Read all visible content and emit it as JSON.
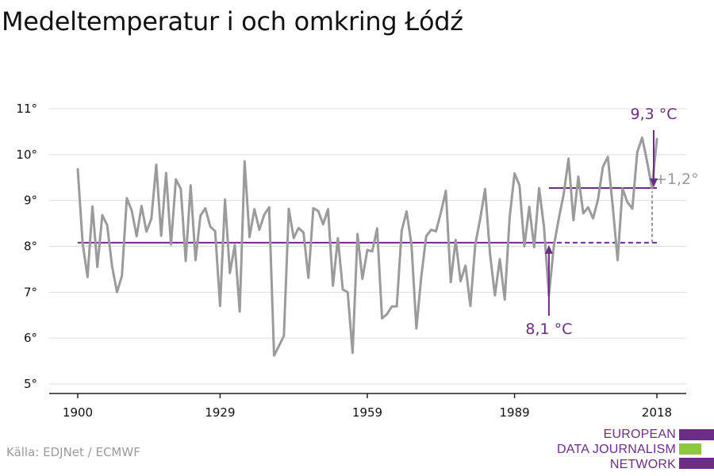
{
  "header": {
    "title": "Medeltemperatur i och omkring Łódź"
  },
  "footer": {
    "source": "Källa: EDJNet / ECMWF"
  },
  "logo": {
    "lines": [
      "EUROPEAN",
      "DATA JOURNALISM",
      "NETWORK"
    ],
    "colors": {
      "text": "#6b2d87",
      "bar_purple": "#6b2d87",
      "bar_green": "#8dc63f"
    }
  },
  "colors": {
    "series": "#9b9b9b",
    "accent": "#6b2d87",
    "grid": "#dddddd",
    "axis": "#222222"
  },
  "chart_data": {
    "type": "line",
    "title": "Medeltemperatur i och omkring Łódź",
    "xlabel": "",
    "ylabel": "",
    "xlim": [
      1900,
      2018
    ],
    "ylim": [
      5,
      11
    ],
    "x_ticks": [
      1900,
      1929,
      1959,
      1989,
      2018
    ],
    "y_ticks": [
      5,
      6,
      7,
      8,
      9,
      10,
      11
    ],
    "y_tick_labels": [
      "5°",
      "6°",
      "7°",
      "8°",
      "9°",
      "10°",
      "11°"
    ],
    "grid": true,
    "series": [
      {
        "x": [
          1900,
          1901,
          1902,
          1903,
          1904,
          1905,
          1906,
          1907,
          1908,
          1909,
          1910,
          1911,
          1912,
          1913,
          1914,
          1915,
          1916,
          1917,
          1918,
          1919,
          1920,
          1921,
          1922,
          1923,
          1924,
          1925,
          1926,
          1927,
          1928,
          1929,
          1930,
          1931,
          1932,
          1933,
          1934,
          1935,
          1936,
          1937,
          1938,
          1939,
          1940,
          1941,
          1942,
          1943,
          1944,
          1945,
          1946,
          1947,
          1948,
          1949,
          1950,
          1951,
          1952,
          1953,
          1954,
          1955,
          1956,
          1957,
          1958,
          1959,
          1960,
          1961,
          1962,
          1963,
          1964,
          1965,
          1966,
          1967,
          1968,
          1969,
          1970,
          1971,
          1972,
          1973,
          1974,
          1975,
          1976,
          1977,
          1978,
          1979,
          1980,
          1981,
          1982,
          1983,
          1984,
          1985,
          1986,
          1987,
          1988,
          1989,
          1990,
          1991,
          1992,
          1993,
          1994,
          1995,
          1996,
          1997,
          1998,
          1999,
          2000,
          2001,
          2002,
          2003,
          2004,
          2005,
          2006,
          2007,
          2008,
          2009,
          2010,
          2011,
          2012,
          2013,
          2014,
          2015,
          2016,
          2017,
          2018
        ],
        "values": [
          9.68,
          8.06,
          7.33,
          8.87,
          7.55,
          8.68,
          8.46,
          7.56,
          7.0,
          7.36,
          9.05,
          8.78,
          8.22,
          8.88,
          8.32,
          8.6,
          9.78,
          8.23,
          9.6,
          8.04,
          9.46,
          9.25,
          7.68,
          9.33,
          7.7,
          8.67,
          8.83,
          8.43,
          8.33,
          6.7,
          9.02,
          7.42,
          8.03,
          6.58,
          9.85,
          8.2,
          8.81,
          8.36,
          8.69,
          8.85,
          5.62,
          5.83,
          6.05,
          8.82,
          8.18,
          8.4,
          8.3,
          7.31,
          8.83,
          8.77,
          8.48,
          8.81,
          7.14,
          8.18,
          7.06,
          7.0,
          5.68,
          8.27,
          7.29,
          7.92,
          7.89,
          8.39,
          6.43,
          6.52,
          6.69,
          6.69,
          8.34,
          8.76,
          8.03,
          6.21,
          7.34,
          8.22,
          8.36,
          8.33,
          8.74,
          9.21,
          7.22,
          8.14,
          7.24,
          7.58,
          6.7,
          8.04,
          8.6,
          9.25,
          7.84,
          6.93,
          7.72,
          6.84,
          8.63,
          9.59,
          9.33,
          8.0,
          8.86,
          7.98,
          9.27,
          8.42,
          6.93,
          8.0,
          8.6,
          9.13,
          9.91,
          8.57,
          9.52,
          8.72,
          8.85,
          8.61,
          9.02,
          9.73,
          9.95,
          8.88,
          7.7,
          9.26,
          8.96,
          8.82,
          10.05,
          10.37,
          9.85,
          9.27,
          10.34
        ]
      }
    ],
    "reference_lines": [
      {
        "label": "8,1 °C",
        "value": 8.08,
        "x_solid": [
          1900,
          1996
        ],
        "x_dashed": [
          1996,
          2018
        ]
      },
      {
        "label": "9,3 °C",
        "value": 9.27,
        "x_solid": [
          1996,
          2018
        ]
      }
    ],
    "annotations": {
      "baseline": "8,1 °C",
      "recent": "9,3 °C",
      "difference": "+1,2°"
    }
  }
}
